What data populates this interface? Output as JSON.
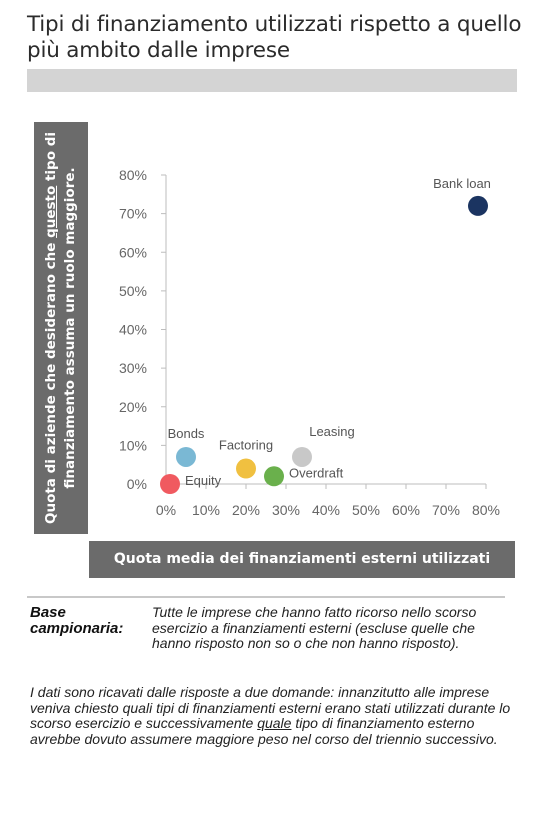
{
  "header": {
    "title": "Tipi di finanziamento utilizzati rispetto a quello più ambito dalle imprese"
  },
  "chart_data": {
    "type": "scatter",
    "xlabel": "Quota media dei finanziamenti esterni utilizzati",
    "ylabel_parts": [
      "Quota di aziende che desiderano che ",
      "questo",
      " tipo di finanziamento assuma un ruolo maggiore."
    ],
    "xlim": [
      0,
      80
    ],
    "ylim": [
      0,
      80
    ],
    "x_ticks": [
      "0%",
      "10%",
      "20%",
      "30%",
      "40%",
      "50%",
      "60%",
      "70%",
      "80%"
    ],
    "y_ticks": [
      "0%",
      "10%",
      "20%",
      "30%",
      "40%",
      "50%",
      "60%",
      "70%",
      "80%"
    ],
    "points": [
      {
        "name": "Bank loan",
        "x": 78,
        "y": 72,
        "color": "#1b3461",
        "label_pos": "above-left"
      },
      {
        "name": "Bonds",
        "x": 5,
        "y": 7,
        "color": "#7ab8d4",
        "label_pos": "above"
      },
      {
        "name": "Factoring",
        "x": 20,
        "y": 4,
        "color": "#f0c040",
        "label_pos": "above"
      },
      {
        "name": "Leasing",
        "x": 34,
        "y": 7,
        "color": "#c8c8c8",
        "label_pos": "above-right"
      },
      {
        "name": "Overdraft",
        "x": 27,
        "y": 2,
        "color": "#6ab04c",
        "label_pos": "right"
      },
      {
        "name": "Equity",
        "x": 1,
        "y": 0,
        "color": "#f05a60",
        "label_pos": "right"
      }
    ],
    "grid": false,
    "legend": "none"
  },
  "footer": {
    "base_label": "Base campionaria:",
    "base_text": "Tutte le imprese che hanno fatto ricorso nello scorso esercizio a finanziamenti esterni (escluse quelle che hanno risposto non so o che non hanno risposto).",
    "note_before": "I dati sono ricavati dalle risposte a due domande: innanzitutto alle imprese veniva chiesto quali tipi di finanziamenti esterni erano stati utilizzati durante lo scorso esercizio e successivamente ",
    "note_underlined": "quale",
    "note_after": " tipo di finanziamento esterno avrebbe dovuto assumere maggiore peso nel corso del triennio successivo."
  }
}
